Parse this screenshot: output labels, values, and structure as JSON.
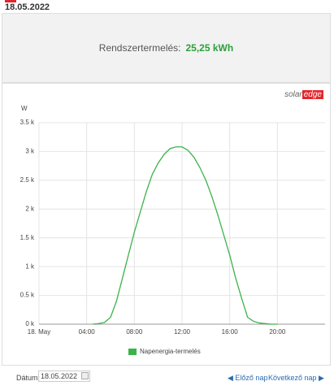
{
  "header": {
    "date": "18.05.2022"
  },
  "summary": {
    "label": "Rendszertermelés:",
    "value": "25,25 kWh"
  },
  "logo": {
    "part1": "solar",
    "part2": "edge"
  },
  "chart_data": {
    "type": "line",
    "y_label": "W",
    "x": [
      4.5,
      5,
      5.5,
      6,
      6.5,
      7,
      7.5,
      8,
      8.5,
      9,
      9.5,
      10,
      10.5,
      11,
      11.5,
      12,
      12.5,
      13,
      13.5,
      14,
      14.5,
      15,
      15.5,
      16,
      16.5,
      17,
      17.5,
      18,
      18.5,
      19,
      19.5,
      20
    ],
    "series": [
      {
        "name": "Napenergia-termelés",
        "color": "#3cb34a",
        "values": [
          0,
          10,
          30,
          120,
          400,
          800,
          1200,
          1600,
          1950,
          2300,
          2600,
          2800,
          2950,
          3050,
          3080,
          3080,
          3020,
          2900,
          2720,
          2500,
          2220,
          1900,
          1550,
          1200,
          800,
          450,
          120,
          50,
          20,
          10,
          0,
          0
        ]
      }
    ],
    "xlim": [
      0,
      24
    ],
    "xticks": [
      {
        "value": 0,
        "label": "18. May"
      },
      {
        "value": 4,
        "label": "04:00"
      },
      {
        "value": 8,
        "label": "08:00"
      },
      {
        "value": 12,
        "label": "12:00"
      },
      {
        "value": 16,
        "label": "16:00"
      },
      {
        "value": 20,
        "label": "20:00"
      }
    ],
    "ylim": [
      0,
      3500
    ],
    "yticks": [
      {
        "value": 0,
        "label": "0 k"
      },
      {
        "value": 500,
        "label": "0.5 k"
      },
      {
        "value": 1000,
        "label": "1 k"
      },
      {
        "value": 1500,
        "label": "1.5 k"
      },
      {
        "value": 2000,
        "label": "2 k"
      },
      {
        "value": 2500,
        "label": "2.5 k"
      },
      {
        "value": 3000,
        "label": "3 k"
      },
      {
        "value": 3500,
        "label": "3.5 k"
      }
    ],
    "grid": true,
    "legend": "bottom"
  },
  "footer": {
    "date_label": "Dátum:",
    "date_value": "18.05.2022",
    "prev": "Előző nap",
    "next": "Következő nap"
  }
}
